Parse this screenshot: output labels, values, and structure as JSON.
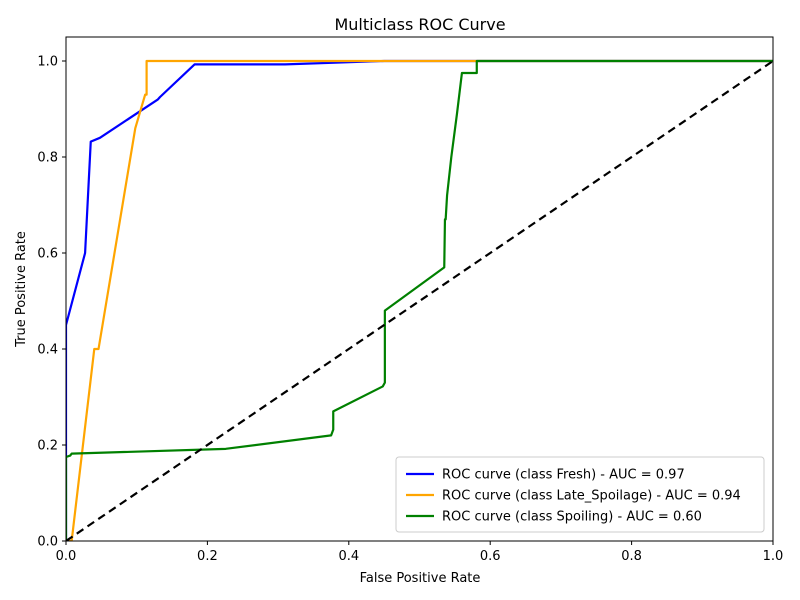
{
  "chart_data": {
    "type": "line",
    "title": "Multiclass ROC Curve",
    "xlabel": "False Positive Rate",
    "ylabel": "True Positive Rate",
    "xlim": [
      0.0,
      1.0
    ],
    "ylim": [
      0.0,
      1.05
    ],
    "x_ticks": [
      0.0,
      0.2,
      0.4,
      0.6,
      0.8,
      1.0
    ],
    "x_tick_labels": [
      "0.0",
      "0.2",
      "0.4",
      "0.6",
      "0.8",
      "1.0"
    ],
    "y_ticks": [
      0.0,
      0.2,
      0.4,
      0.6,
      0.8,
      1.0
    ],
    "y_tick_labels": [
      "0.0",
      "0.2",
      "0.4",
      "0.6",
      "0.8",
      "1.0"
    ],
    "grid": false,
    "legend_position": "lower-right",
    "series": [
      {
        "name": "ROC curve (class Fresh) - AUC = 0.97",
        "color": "#0000ff",
        "points": [
          [
            0,
            0
          ],
          [
            0,
            0.45
          ],
          [
            0.027,
            0.6
          ],
          [
            0.035,
            0.832
          ],
          [
            0.048,
            0.84
          ],
          [
            0.13,
            0.92
          ],
          [
            0.133,
            0.925
          ],
          [
            0.182,
            0.993
          ],
          [
            0.31,
            0.993
          ],
          [
            0.45,
            1.0
          ],
          [
            1.0,
            1.0
          ]
        ]
      },
      {
        "name": "ROC curve (class Late_Spoilage) - AUC = 0.94",
        "color": "#ffa500",
        "points": [
          [
            0,
            0
          ],
          [
            0.008,
            0.0
          ],
          [
            0.04,
            0.4
          ],
          [
            0.046,
            0.4
          ],
          [
            0.098,
            0.86
          ],
          [
            0.112,
            0.93
          ],
          [
            0.114,
            0.93
          ],
          [
            0.114,
            1.0
          ],
          [
            1.0,
            1.0
          ]
        ]
      },
      {
        "name": "ROC curve (class Spoiling) - AUC = 0.60",
        "color": "#008000",
        "points": [
          [
            0,
            0
          ],
          [
            0,
            0.175
          ],
          [
            0.006,
            0.178
          ],
          [
            0.008,
            0.182
          ],
          [
            0.226,
            0.192
          ],
          [
            0.375,
            0.22
          ],
          [
            0.378,
            0.232
          ],
          [
            0.378,
            0.27
          ],
          [
            0.448,
            0.322
          ],
          [
            0.451,
            0.33
          ],
          [
            0.451,
            0.48
          ],
          [
            0.535,
            0.57
          ],
          [
            0.536,
            0.67
          ],
          [
            0.537,
            0.67
          ],
          [
            0.539,
            0.72
          ],
          [
            0.545,
            0.8
          ],
          [
            0.553,
            0.89
          ],
          [
            0.56,
            0.975
          ],
          [
            0.581,
            0.975
          ],
          [
            0.581,
            1.0
          ],
          [
            1.0,
            1.0
          ]
        ]
      }
    ],
    "reference_line": {
      "color": "#000000",
      "points": [
        [
          0,
          0
        ],
        [
          1,
          1
        ]
      ]
    }
  }
}
